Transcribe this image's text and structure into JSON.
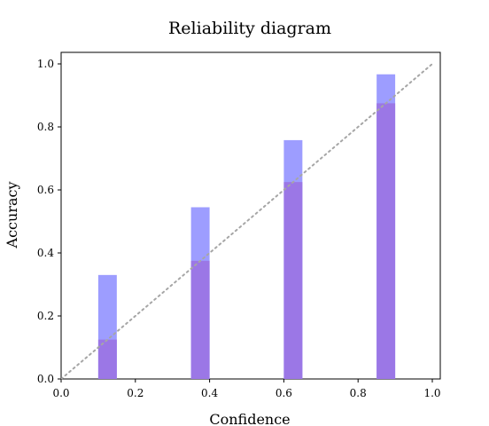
{
  "chart_data": {
    "type": "bar",
    "title": "Reliability diagram",
    "xlabel": "Confidence",
    "ylabel": "Accuracy",
    "xlim": [
      0.0,
      1.0
    ],
    "ylim": [
      0.0,
      1.0
    ],
    "xticks": [
      "0.0",
      "0.2",
      "0.4",
      "0.6",
      "0.8",
      "1.0"
    ],
    "yticks": [
      "0.0",
      "0.2",
      "0.4",
      "0.6",
      "0.8",
      "1.0"
    ],
    "grid": false,
    "legend": "none",
    "bar_width": 0.05,
    "x": [
      0.125,
      0.375,
      0.625,
      0.875
    ],
    "series": [
      {
        "values": [
          0.33,
          0.545,
          0.758,
          0.967
        ],
        "color": "#9d9dff"
      },
      {
        "values": [
          0.125,
          0.375,
          0.625,
          0.875
        ],
        "color": "#9b77e6"
      }
    ],
    "reference_line": {
      "x": [
        0.0,
        1.0
      ],
      "y": [
        0.0,
        1.0
      ],
      "style": "dotted",
      "color": "#a6a6a6"
    }
  }
}
